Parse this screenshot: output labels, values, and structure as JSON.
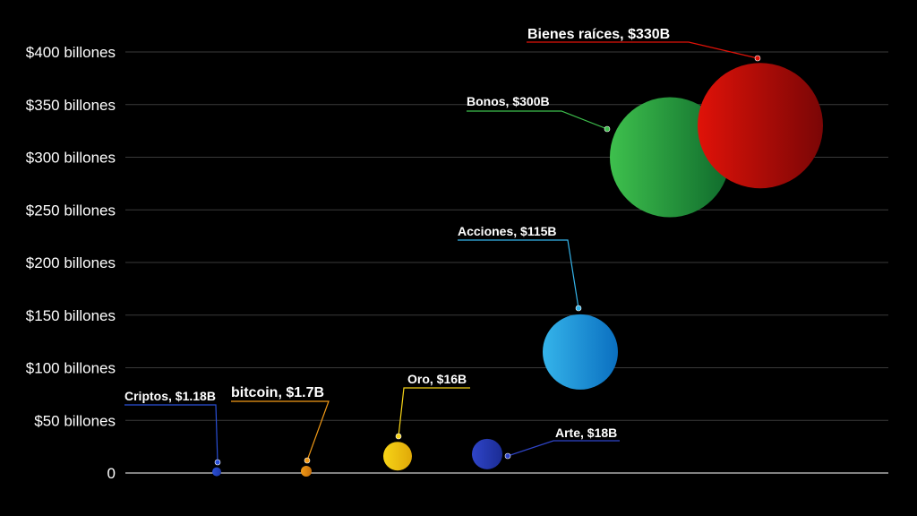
{
  "chart_data": {
    "type": "scatter",
    "title": "",
    "xlabel": "",
    "ylabel": "",
    "ylim": [
      0,
      400
    ],
    "y_ticks": [
      {
        "value": 0,
        "label": "0"
      },
      {
        "value": 50,
        "label": "$50 billones"
      },
      {
        "value": 100,
        "label": "$100 billones"
      },
      {
        "value": 150,
        "label": "$150 billones"
      },
      {
        "value": 200,
        "label": "$200 billones"
      },
      {
        "value": 250,
        "label": "$250 billones"
      },
      {
        "value": 300,
        "label": "$300 billones"
      },
      {
        "value": 350,
        "label": "$350 billones"
      },
      {
        "value": 400,
        "label": "$400 billones"
      }
    ],
    "grid": true,
    "series": [
      {
        "label": "Criptos, $1.18B",
        "value": 1.18,
        "color": "#2a4fd6",
        "color_dark": "#1c37a8"
      },
      {
        "label": "bitcoin, $1.7B",
        "value": 1.7,
        "color": "#f29a16",
        "color_dark": "#c46f0a"
      },
      {
        "label": "Oro, $16B",
        "value": 16,
        "color": "#f7d417",
        "color_dark": "#e0a908"
      },
      {
        "label": "Arte, $18B",
        "value": 18,
        "color": "#2f45c9",
        "color_dark": "#1b2c94"
      },
      {
        "label": "Acciones, $115B",
        "value": 115,
        "color": "#35b4ea",
        "color_dark": "#0a6fc0"
      },
      {
        "label": "Bonos, $300B",
        "value": 300,
        "color": "#3ec04d",
        "color_dark": "#0f6a2c"
      },
      {
        "label": "Bienes raíces, $330B",
        "value": 330,
        "color": "#e01208",
        "color_dark": "#7a0606"
      }
    ]
  }
}
